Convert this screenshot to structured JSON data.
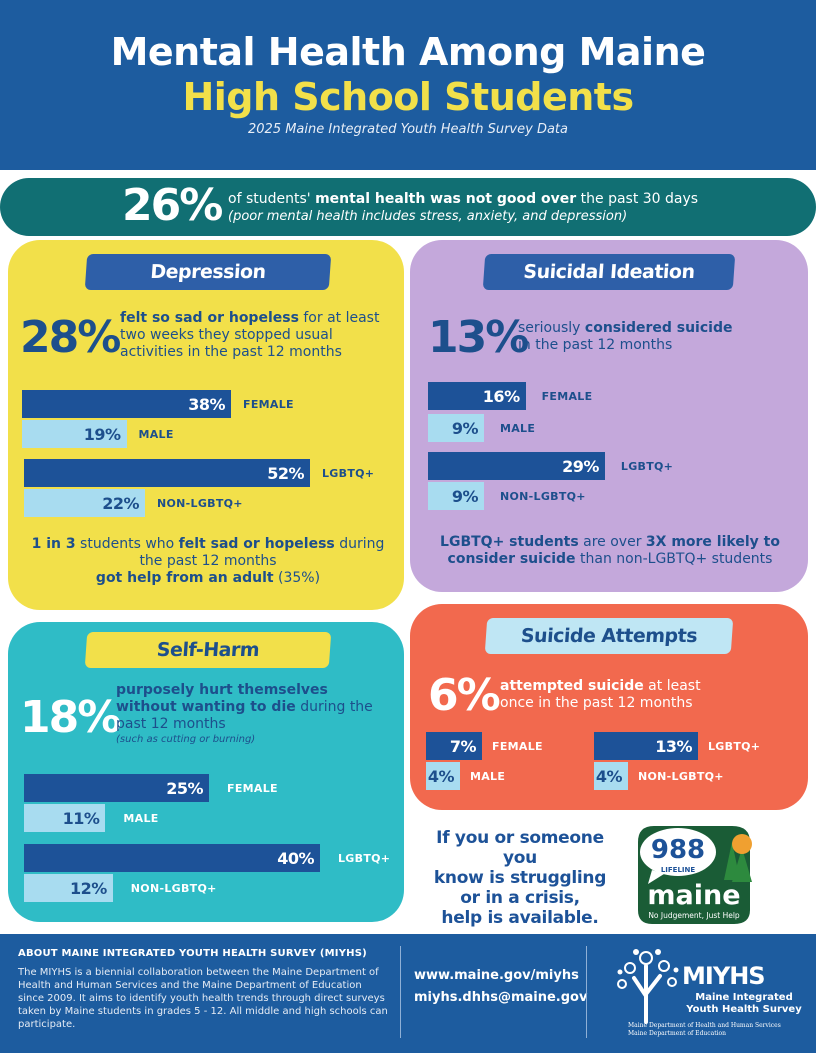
{
  "header": {
    "title_line1": "Mental Health Among Maine",
    "title_line2": "High School Students",
    "subtitle": "2025 Maine Integrated Youth Health Survey Data"
  },
  "banner": {
    "percent": "26%",
    "text_pre": "of students' ",
    "text_bold": "mental health was not good over",
    "text_post": " the past 30 days",
    "note": "(poor mental health includes stress, anxiety, and depression)"
  },
  "depression": {
    "heading": "Depression",
    "percent": "28%",
    "desc_bold": "felt so sad or hopeless",
    "desc_rest1": " for at least",
    "desc_line2": "two weeks they stopped usual",
    "desc_line3": "activities in the past 12 months",
    "bars": [
      {
        "label": "FEMALE",
        "value": 38,
        "text": "38%"
      },
      {
        "label": "MALE",
        "value": 19,
        "text": "19%"
      },
      {
        "label": "LGBTQ+",
        "value": 52,
        "text": "52%"
      },
      {
        "label": "NON-LGBTQ+",
        "value": 22,
        "text": "22%"
      }
    ],
    "note_line1_pre": "1 in 3",
    "note_line1_mid": " students who ",
    "note_line1_bold": "felt sad or hopeless",
    "note_line1_post": " during",
    "note_line2": "the past 12 months",
    "note_line3_bold": "got help from an adult",
    "note_line3_post": " (35%)"
  },
  "suicidal": {
    "heading": "Suicidal Ideation",
    "percent": "13%",
    "desc_pre": "seriously ",
    "desc_bold": "considered suicide",
    "desc_line2": "in the past 12 months",
    "bars": [
      {
        "label": "FEMALE",
        "value": 16,
        "text": "16%"
      },
      {
        "label": "MALE",
        "value": 9,
        "text": "9%"
      },
      {
        "label": "LGBTQ+",
        "value": 29,
        "text": "29%"
      },
      {
        "label": "NON-LGBTQ+",
        "value": 9,
        "text": "9%"
      }
    ],
    "note_line1_bold1": "LGBTQ+ students",
    "note_line1_mid": " are over ",
    "note_line1_bold2": "3X more likely to",
    "note_line2_bold": "consider suicide",
    "note_line2_post": " than non-LGBTQ+ students"
  },
  "selfharm": {
    "heading": "Self-Harm",
    "percent": "18%",
    "desc_line1_bold": "purposely hurt themselves",
    "desc_line2_bold": "without wanting to die",
    "desc_line2_post": " during the",
    "desc_line3": "past 12 months",
    "desc_note": "(such as cutting or burning)",
    "bars": [
      {
        "label": "FEMALE",
        "value": 25,
        "text": "25%"
      },
      {
        "label": "MALE",
        "value": 11,
        "text": "11%"
      },
      {
        "label": "LGBTQ+",
        "value": 40,
        "text": "40%"
      },
      {
        "label": "NON-LGBTQ+",
        "value": 12,
        "text": "12%"
      }
    ]
  },
  "attempts": {
    "heading": "Suicide Attempts",
    "percent": "6%",
    "desc_bold": "attempted suicide",
    "desc_rest1": " at least",
    "desc_line2": "once in the past 12 months",
    "bars": [
      {
        "label": "FEMALE",
        "value": 7,
        "text": "7%"
      },
      {
        "label": "MALE",
        "value": 4,
        "text": "4%"
      },
      {
        "label": "LGBTQ+",
        "value": 13,
        "text": "13%"
      },
      {
        "label": "NON-LGBTQ+",
        "value": 4,
        "text": "4%"
      }
    ]
  },
  "help": {
    "line1": "If you or someone you",
    "line2": "know is struggling",
    "line3": "or in a crisis,",
    "line4": "help is available."
  },
  "lifeline": {
    "number": "988",
    "lifeline_label": "LIFELINE",
    "state": "maine",
    "tagline": "No Judgement, Just Help"
  },
  "footer": {
    "title": "ABOUT MAINE INTEGRATED YOUTH HEALTH SURVEY (MIYHS)",
    "body": "The MIYHS is a biennial collaboration between the Maine Department of Health and Human Services and the Maine Department of Education since 2009. It aims to identify youth health trends through direct surveys taken by Maine students in grades 5 - 12. All middle and high schools can participate.",
    "website": "www.maine.gov/miyhs",
    "email": "miyhs.dhhs@maine.gov",
    "logo_name": "MIYHS",
    "logo_sub1": "Maine Integrated",
    "logo_sub2": "Youth Health Survey",
    "dept1": "Maine Department of Health and Human Services",
    "dept2": "Maine Department of Education"
  },
  "colors": {
    "navy": "#1d5c9f",
    "yellow": "#f2e04a",
    "teal": "#116f73",
    "lavender": "#c4a8db",
    "cyan": "#2fbcc6",
    "coral": "#f2694e",
    "bar_dark": "#1d5298",
    "bar_light": "#a8dcf0"
  }
}
